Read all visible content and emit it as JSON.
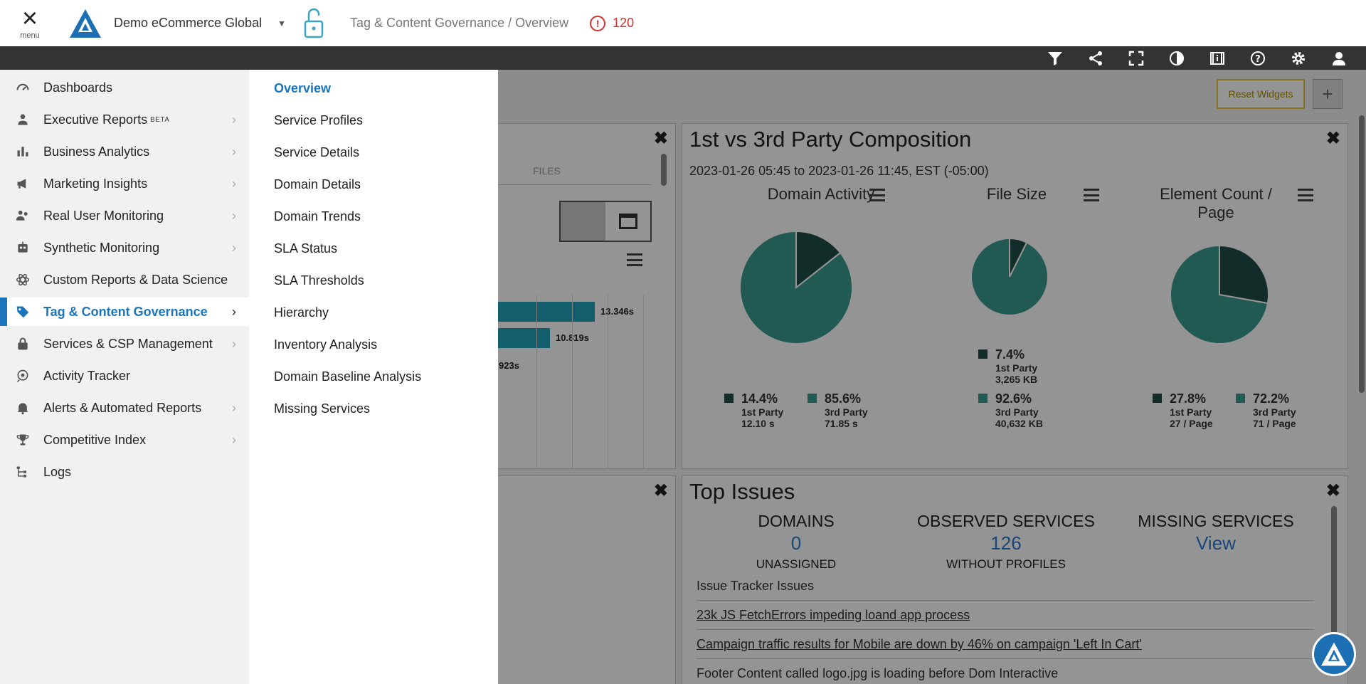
{
  "header": {
    "menu_label": "menu",
    "account_name": "Demo eCommerce Global",
    "breadcrumb": "Tag & Content Governance / Overview",
    "alert_count": "120"
  },
  "toolbar": {
    "icons": [
      "filter-icon",
      "share-icon",
      "fullscreen-icon",
      "contrast-icon",
      "info-panel-icon",
      "help-icon",
      "settings-icon",
      "user-icon"
    ]
  },
  "dashboard": {
    "reset_label": "Reset Widgets",
    "add_label": "+",
    "left_widget": {
      "tab_files": "FILES",
      "bar_values": [
        "13.346s",
        "10.819s",
        "923s"
      ]
    },
    "composition": {
      "title": "1st vs 3rd Party Composition",
      "range": "2023-01-26 05:45 to 2023-01-26 11:45, EST (-05:00)",
      "charts": [
        {
          "title": "Domain Activity",
          "first_pct": "14.4%",
          "first_label": "1st Party",
          "first_value": "12.10 s",
          "third_pct": "85.6%",
          "third_label": "3rd Party",
          "third_value": "71.85 s"
        },
        {
          "title": "File Size",
          "first_pct": "7.4%",
          "first_label": "1st Party",
          "first_value": "3,265 KB",
          "third_pct": "92.6%",
          "third_label": "3rd Party",
          "third_value": "40,632 KB"
        },
        {
          "title": "Element Count / Page",
          "first_pct": "27.8%",
          "first_label": "1st Party",
          "first_value": "27 / Page",
          "third_pct": "72.2%",
          "third_label": "3rd Party",
          "third_value": "71 / Page"
        }
      ]
    },
    "top_issues": {
      "title": "Top Issues",
      "cols": [
        {
          "head": "DOMAINS",
          "value": "0",
          "sub": "UNASSIGNED"
        },
        {
          "head": "OBSERVED SERVICES",
          "value": "126",
          "sub": "WITHOUT PROFILES"
        },
        {
          "head": "MISSING SERVICES",
          "value": "View",
          "sub": ""
        }
      ],
      "tracker_head": "Issue Tracker Issues",
      "issues": [
        "23k JS FetchErrors impeding loand app process",
        "Campaign traffic results for Mobile are down by 46% on campaign 'Left In Cart'",
        "Footer Content called logo.jpg is loading before Dom Interactive"
      ]
    }
  },
  "chart_data": [
    {
      "type": "pie",
      "title": "Domain Activity",
      "categories": [
        "1st Party",
        "3rd Party"
      ],
      "values": [
        14.4,
        85.6
      ],
      "colors": [
        "#1f4d48",
        "#3a9c8f"
      ]
    },
    {
      "type": "pie",
      "title": "File Size",
      "categories": [
        "1st Party",
        "3rd Party"
      ],
      "values": [
        7.4,
        92.6
      ],
      "colors": [
        "#1f4d48",
        "#3a9c8f"
      ]
    },
    {
      "type": "pie",
      "title": "Element Count / Page",
      "categories": [
        "1st Party",
        "3rd Party"
      ],
      "values": [
        27.8,
        72.2
      ],
      "colors": [
        "#1f4d48",
        "#3a9c8f"
      ]
    }
  ],
  "sidebar": {
    "accent": "#1a75bb",
    "items": [
      {
        "label": "Dashboards",
        "icon": "gauge-icon",
        "arrow": false
      },
      {
        "label": "Executive Reports",
        "beta": "BETA",
        "icon": "executive-icon",
        "arrow": true
      },
      {
        "label": "Business Analytics",
        "icon": "bar-chart-icon",
        "arrow": true
      },
      {
        "label": "Marketing Insights",
        "icon": "megaphone-icon",
        "arrow": true
      },
      {
        "label": "Real User Monitoring",
        "icon": "users-icon",
        "arrow": true
      },
      {
        "label": "Synthetic Monitoring",
        "icon": "robot-icon",
        "arrow": true
      },
      {
        "label": "Custom Reports & Data Science",
        "icon": "atom-icon",
        "arrow": false
      },
      {
        "label": "Tag & Content Governance",
        "icon": "tag-icon",
        "arrow": true
      },
      {
        "label": "Services & CSP Management",
        "icon": "lock-icon",
        "arrow": true
      },
      {
        "label": "Activity Tracker",
        "icon": "tracker-icon",
        "arrow": false
      },
      {
        "label": "Alerts & Automated Reports",
        "icon": "bell-icon",
        "arrow": true
      },
      {
        "label": "Competitive Index",
        "icon": "trophy-icon",
        "arrow": true
      },
      {
        "label": "Logs",
        "icon": "logs-icon",
        "arrow": false
      }
    ]
  },
  "submenu": {
    "items": [
      "Overview",
      "Service Profiles",
      "Service Details",
      "Domain Details",
      "Domain Trends",
      "SLA Status",
      "SLA Thresholds",
      "Hierarchy",
      "Inventory Analysis",
      "Domain Baseline Analysis",
      "Missing Services"
    ]
  }
}
